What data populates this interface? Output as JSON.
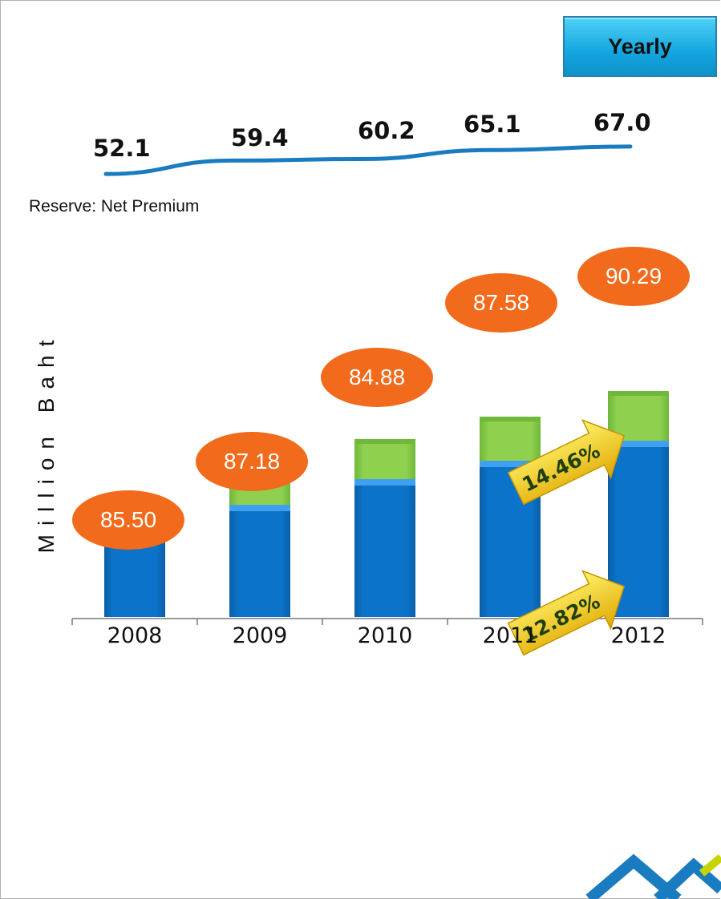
{
  "header": {
    "yearly_label": "Yearly"
  },
  "ratio_caption": "Reserve: Net Premium",
  "ratio_series": [
    {
      "year": "2008",
      "label": "52.1",
      "value": 52.1
    },
    {
      "year": "2009",
      "label": "59.4",
      "value": 59.4
    },
    {
      "year": "2010",
      "label": "60.2",
      "value": 60.2
    },
    {
      "year": "2011",
      "label": "65.1",
      "value": 65.1
    },
    {
      "year": "2012",
      "label": "67.0",
      "value": 67.0
    }
  ],
  "bubbles": [
    "85.50",
    "87.18",
    "84.88",
    "87.58",
    "90.29"
  ],
  "growth_arrows": [
    {
      "label": "14.46%"
    },
    {
      "label": "12.82%"
    }
  ],
  "colors": {
    "blue": "#0b73c9",
    "green": "#8fd14f",
    "orange": "#f26a1b",
    "line": "#1a7cc0",
    "arrow": "#f5c518"
  },
  "chart_data": {
    "type": "bar",
    "stacked": true,
    "categories": [
      "2008",
      "2009",
      "2010",
      "2011",
      "2012"
    ],
    "ylabel": "Million Baht",
    "ylim": [
      0,
      320
    ],
    "series": [
      {
        "values": [
          103,
          140,
          172,
          195,
          220
        ]
      },
      {
        "values": [
          40,
          45,
          50,
          55,
          62
        ]
      }
    ],
    "grid": false,
    "legend": "none"
  }
}
